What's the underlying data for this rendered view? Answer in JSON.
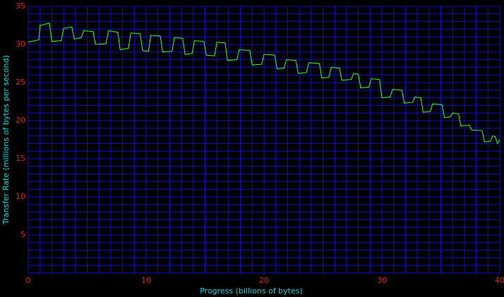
{
  "chart_data": {
    "type": "line",
    "xlabel": "Progress (billions of bytes)",
    "ylabel": "Transfer Rate (millions of bytes per second)",
    "xlim": [
      0,
      40
    ],
    "ylim": [
      0,
      35
    ],
    "xticks": [
      0,
      10,
      20,
      30,
      40
    ],
    "yticks": [
      5,
      10,
      15,
      20,
      25,
      30,
      35
    ],
    "grid": true,
    "grid_step": 1,
    "background": "#000000",
    "grid_color": "#1010c8",
    "tick_color": "#e02020",
    "label_color": "#10d8d8",
    "series": [
      {
        "name": "Transfer Rate",
        "color": "#40ff20",
        "x": [
          0,
          0.9,
          1.0,
          1.8,
          2.0,
          2.8,
          3.0,
          3.7,
          3.9,
          4.5,
          4.7,
          5.5,
          5.7,
          6.6,
          6.8,
          7.6,
          7.8,
          8.5,
          8.7,
          9.5,
          9.7,
          10.2,
          10.4,
          11.2,
          11.4,
          12.2,
          12.4,
          13.1,
          13.3,
          13.9,
          14.1,
          14.9,
          15.1,
          15.8,
          16.0,
          16.7,
          16.9,
          17.7,
          17.9,
          18.8,
          19.0,
          19.8,
          20.0,
          20.9,
          21.1,
          21.7,
          21.9,
          22.7,
          22.9,
          23.6,
          23.8,
          24.7,
          24.9,
          25.5,
          25.7,
          26.4,
          26.6,
          27.4,
          27.6,
          28.0,
          28.2,
          28.9,
          29.1,
          29.8,
          30.0,
          30.7,
          30.9,
          31.7,
          31.9,
          32.6,
          32.8,
          33.3,
          33.5,
          34.1,
          34.3,
          35.1,
          35.3,
          35.8,
          36.0,
          36.5,
          36.7,
          37.4,
          37.6,
          38.5,
          38.7,
          39.2,
          39.4,
          39.6,
          39.8,
          40
        ],
        "values": [
          30.3,
          30.6,
          32.5,
          32.8,
          30.4,
          30.5,
          32.1,
          32.3,
          30.7,
          30.9,
          31.8,
          31.7,
          30.0,
          30.1,
          31.8,
          31.6,
          29.3,
          29.5,
          31.5,
          31.4,
          29.2,
          29.1,
          31.2,
          31.1,
          29.0,
          29.1,
          30.9,
          30.8,
          28.7,
          28.8,
          30.5,
          30.4,
          28.6,
          28.5,
          30.3,
          30.2,
          27.9,
          28.0,
          29.3,
          29.2,
          27.3,
          27.4,
          28.7,
          28.6,
          26.8,
          26.9,
          28.0,
          27.9,
          26.2,
          26.3,
          27.6,
          27.5,
          25.6,
          25.7,
          27.0,
          26.9,
          25.3,
          25.4,
          26.2,
          26.1,
          24.3,
          24.4,
          25.5,
          25.4,
          23.0,
          23.1,
          24.1,
          24.0,
          22.3,
          22.4,
          23.1,
          23.0,
          21.1,
          21.2,
          22.2,
          22.1,
          20.4,
          20.5,
          21.0,
          20.9,
          19.3,
          19.4,
          18.8,
          18.7,
          17.2,
          17.3,
          18.0,
          17.9,
          17.0,
          17.5
        ]
      }
    ]
  }
}
